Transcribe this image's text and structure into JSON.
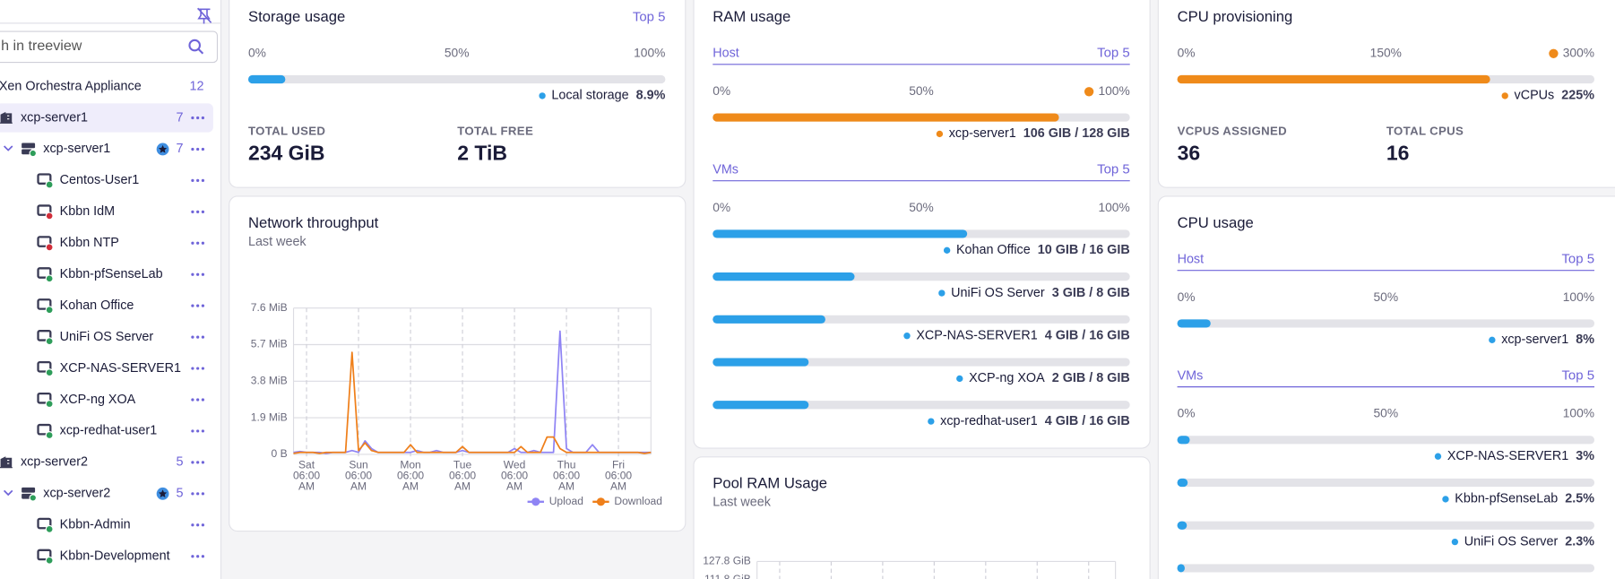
{
  "sidebar": {
    "search_placeholder": "h in treeview",
    "tree": [
      {
        "label": "Xen Orchestra Appliance",
        "count": 12,
        "kind": "site"
      },
      {
        "label": "xcp-server1",
        "count": 7,
        "kind": "pool",
        "selected": true
      },
      {
        "label": "xcp-server1",
        "count": 7,
        "kind": "host",
        "primary": true
      },
      {
        "label": "Centos-User1",
        "kind": "vm",
        "status": "running"
      },
      {
        "label": "Kbbn IdM",
        "kind": "vm",
        "status": "halted"
      },
      {
        "label": "Kbbn NTP",
        "kind": "vm",
        "status": "halted"
      },
      {
        "label": "Kbbn-pfSenseLab",
        "kind": "vm",
        "status": "running"
      },
      {
        "label": "Kohan Office",
        "kind": "vm",
        "status": "running"
      },
      {
        "label": "UniFi OS Server",
        "kind": "vm",
        "status": "running"
      },
      {
        "label": "XCP-NAS-SERVER1",
        "kind": "vm",
        "status": "running"
      },
      {
        "label": "XCP-ng XOA",
        "kind": "vm",
        "status": "running"
      },
      {
        "label": "xcp-redhat-user1",
        "kind": "vm",
        "status": "running"
      },
      {
        "label": "xcp-server2",
        "count": 5,
        "kind": "pool"
      },
      {
        "label": "xcp-server2",
        "count": 5,
        "kind": "host",
        "primary": true
      },
      {
        "label": "Kbbn-Admin",
        "kind": "vm",
        "status": "running"
      },
      {
        "label": "Kbbn-Development",
        "kind": "vm",
        "status": "running"
      }
    ]
  },
  "storage_usage": {
    "title": "Storage usage",
    "link": "Top 5",
    "sections": [
      {
        "scale": [
          {
            "value": 0,
            "label": "0%"
          },
          {
            "value": 50,
            "label": "50%"
          },
          {
            "value": 100,
            "label": "100%"
          }
        ],
        "bars": [
          {
            "name": "Local storage",
            "value": 8.9,
            "label": "8.9%",
            "color": "#2ca0e8"
          }
        ]
      }
    ],
    "stats": [
      {
        "label": "TOTAL USED",
        "value": "234 GiB"
      },
      {
        "label": "TOTAL FREE",
        "value": "2 TiB"
      }
    ]
  },
  "ram_usage": {
    "title": "RAM usage",
    "sections": [
      {
        "heading": "Host",
        "link": "Top 5",
        "alert": true,
        "scale": [
          {
            "value": 0,
            "label": "0%"
          },
          {
            "value": 50,
            "label": "50%"
          },
          {
            "value": 100,
            "label": "100%"
          }
        ],
        "bars": [
          {
            "name": "xcp-server1",
            "value": 83,
            "label": "106 GIB / 128 GIB",
            "color": "#ef8a1a"
          }
        ]
      },
      {
        "heading": "VMs",
        "link": "Top 5",
        "scale": [
          {
            "value": 0,
            "label": "0%"
          },
          {
            "value": 50,
            "label": "50%"
          },
          {
            "value": 100,
            "label": "100%"
          }
        ],
        "bars": [
          {
            "name": "Kohan Office",
            "value": 61,
            "label": "10 GIB / 16 GIB",
            "color": "#2ca0e8"
          },
          {
            "name": "UniFi OS Server",
            "value": 34,
            "label": "3 GIB / 8 GIB",
            "color": "#2ca0e8"
          },
          {
            "name": "XCP-NAS-SERVER1",
            "value": 27,
            "label": "4 GIB / 16 GIB",
            "color": "#2ca0e8"
          },
          {
            "name": "XCP-ng XOA",
            "value": 23,
            "label": "2 GIB / 8 GIB",
            "color": "#2ca0e8"
          },
          {
            "name": "xcp-redhat-user1",
            "value": 23,
            "label": "4 GIB / 16 GIB",
            "color": "#2ca0e8"
          }
        ]
      }
    ]
  },
  "cpu_provisioning": {
    "title": "CPU provisioning",
    "sections": [
      {
        "alert": true,
        "scale": [
          {
            "value": 0,
            "label": "0%"
          },
          {
            "value": 150,
            "label": "150%"
          },
          {
            "value": 300,
            "label": "300%"
          }
        ],
        "bars": [
          {
            "name": "vCPUs",
            "value": 225,
            "label": "225%",
            "color": "#ef8a1a"
          }
        ]
      }
    ],
    "stats": [
      {
        "label": "VCPUS ASSIGNED",
        "value": 36
      },
      {
        "label": "TOTAL CPUS",
        "value": 16
      }
    ]
  },
  "cpu_usage": {
    "title": "CPU usage",
    "sections": [
      {
        "heading": "Host",
        "link": "Top 5",
        "scale": [
          {
            "value": 0,
            "label": "0%"
          },
          {
            "value": 50,
            "label": "50%"
          },
          {
            "value": 100,
            "label": "100%"
          }
        ],
        "bars": [
          {
            "name": "xcp-server1",
            "value": 8,
            "label": "8%",
            "color": "#2ca0e8"
          }
        ]
      },
      {
        "heading": "VMs",
        "link": "Top 5",
        "scale": [
          {
            "value": 0,
            "label": "0%"
          },
          {
            "value": 50,
            "label": "50%"
          },
          {
            "value": 100,
            "label": "100%"
          }
        ],
        "bars": [
          {
            "name": "XCP-NAS-SERVER1",
            "value": 3,
            "label": "3%",
            "color": "#2ca0e8"
          },
          {
            "name": "Kbbn-pfSenseLab",
            "value": 2.5,
            "label": "2.5%",
            "color": "#2ca0e8"
          },
          {
            "name": "UniFi OS Server",
            "value": 2.3,
            "label": "2.3%",
            "color": "#2ca0e8"
          },
          {
            "name": null,
            "value": 1.8,
            "label": null,
            "color": "#2ca0e8"
          }
        ]
      }
    ]
  },
  "chart_data": [
    {
      "type": "line",
      "title": "Network throughput",
      "subtitle": "Last week",
      "grid": true,
      "ylim": [
        0,
        7.6
      ],
      "yticks": [
        {
          "value": 0,
          "label": "0 B"
        },
        {
          "value": 1.9,
          "label": "1.9 MiB"
        },
        {
          "value": 3.8,
          "label": "3.8 MiB"
        },
        {
          "value": 5.7,
          "label": "5.7 MiB"
        },
        {
          "value": 7.6,
          "label": "7.6 MiB"
        }
      ],
      "xticks": [
        {
          "value": 2,
          "label": "Sat 06:00 AM"
        },
        {
          "value": 10,
          "label": "Sun 06:00 AM"
        },
        {
          "value": 18,
          "label": "Mon 06:00 AM"
        },
        {
          "value": 26,
          "label": "Tue 06:00 AM"
        },
        {
          "value": 34,
          "label": "Wed 06:00 AM"
        },
        {
          "value": 42,
          "label": "Thu 06:00 AM"
        },
        {
          "value": 50,
          "label": "Fri 06:00 AM"
        }
      ],
      "series": [
        {
          "name": "Upload",
          "color": "#8f84f4",
          "values": [
            0.1,
            0.15,
            0.1,
            0.1,
            0.1,
            0.05,
            0.1,
            0.1,
            0.1,
            0.2,
            0.1,
            0.7,
            0.3,
            0.1,
            0.1,
            0.1,
            0.1,
            0.1,
            0.1,
            0.2,
            0.1,
            0.1,
            0.2,
            0.1,
            0.1,
            0.1,
            0.2,
            0.1,
            0.1,
            0.1,
            0.1,
            0.1,
            0.1,
            0.1,
            0.3,
            0.1,
            0.1,
            0.2,
            0.1,
            0.1,
            0.1,
            6.4,
            0.3,
            0.1,
            0.1,
            0.1,
            0.5,
            0.1,
            0.1,
            0.1,
            0.1,
            0.1,
            0.1,
            0.1,
            0.1,
            0.1
          ]
        },
        {
          "name": "Download",
          "color": "#ef7f1a",
          "values": [
            0.05,
            0.1,
            0.1,
            0.1,
            0.05,
            0.1,
            0.1,
            0.1,
            0.1,
            5.3,
            0.2,
            0.6,
            0.2,
            0.1,
            0.1,
            0.1,
            0.1,
            0.1,
            0.5,
            0.1,
            0.1,
            0.1,
            0.1,
            0.1,
            0.1,
            0.1,
            0.4,
            0.1,
            0.1,
            0.1,
            0.1,
            0.1,
            0.1,
            0.1,
            0.1,
            0.4,
            0.1,
            0.1,
            0.1,
            0.9,
            0.9,
            0.3,
            0.1,
            0.1,
            0.1,
            0.1,
            0.1,
            0.1,
            0.1,
            0.1,
            0.1,
            0.1,
            0.1,
            0.1,
            0.05,
            0.1
          ]
        }
      ]
    },
    {
      "type": "line",
      "title": "Pool RAM Usage",
      "subtitle": "Last week",
      "grid": true,
      "ylim": [
        0,
        127.8
      ],
      "yticks": [
        {
          "value": 127.8,
          "label": "127.8 GiB"
        },
        {
          "value": 111.8,
          "label": "111.8 GiB"
        }
      ],
      "series": []
    }
  ]
}
